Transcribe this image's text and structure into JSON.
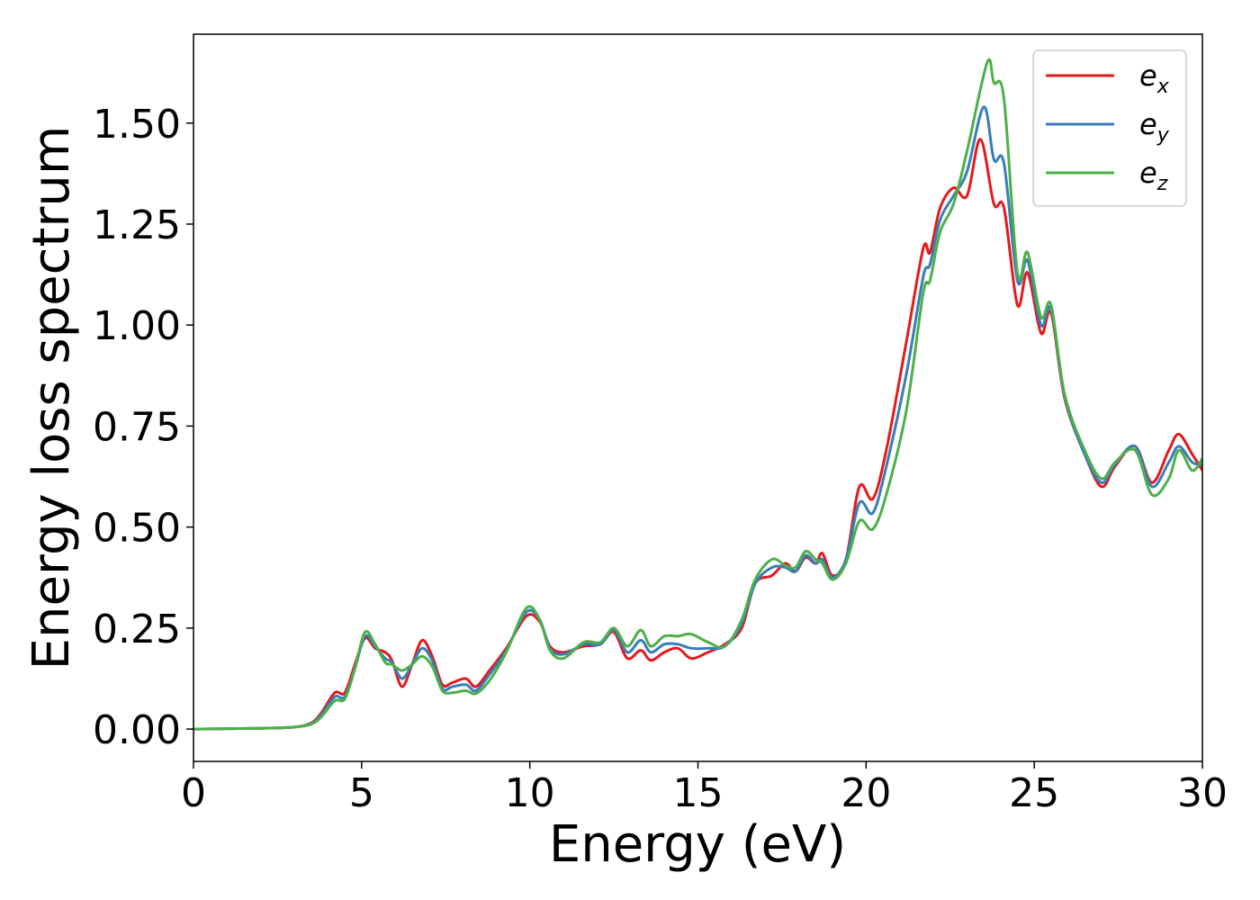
{
  "chart_data": {
    "type": "line",
    "title": "",
    "xlabel": "Energy (eV)",
    "ylabel": "Energy loss spectrum",
    "xlim": [
      0,
      30
    ],
    "ylim": [
      -0.08,
      1.72
    ],
    "xticks": [
      0,
      5,
      10,
      15,
      20,
      25,
      30
    ],
    "xtick_labels": [
      "0",
      "5",
      "10",
      "15",
      "20",
      "25",
      "30"
    ],
    "yticks": [
      0.0,
      0.25,
      0.5,
      0.75,
      1.0,
      1.25,
      1.5
    ],
    "ytick_labels": [
      "0.00",
      "0.25",
      "0.50",
      "0.75",
      "1.00",
      "1.25",
      "1.50"
    ],
    "grid": false,
    "legend": {
      "placement": "top-right",
      "entries": [
        {
          "base": "e",
          "sub": "x",
          "color": "#e41a1c"
        },
        {
          "base": "e",
          "sub": "y",
          "color": "#377eb8"
        },
        {
          "base": "e",
          "sub": "z",
          "color": "#4daf4a"
        }
      ]
    },
    "series": [
      {
        "name": "e_x",
        "color": "#e41a1c",
        "points": [
          [
            0,
            0.0
          ],
          [
            2.0,
            0.002
          ],
          [
            3.0,
            0.005
          ],
          [
            3.5,
            0.015
          ],
          [
            3.8,
            0.04
          ],
          [
            4.2,
            0.09
          ],
          [
            4.5,
            0.09
          ],
          [
            4.8,
            0.16
          ],
          [
            5.1,
            0.225
          ],
          [
            5.4,
            0.2
          ],
          [
            5.7,
            0.19
          ],
          [
            5.9,
            0.17
          ],
          [
            6.2,
            0.105
          ],
          [
            6.5,
            0.16
          ],
          [
            6.8,
            0.22
          ],
          [
            7.1,
            0.18
          ],
          [
            7.4,
            0.11
          ],
          [
            7.7,
            0.115
          ],
          [
            8.1,
            0.125
          ],
          [
            8.4,
            0.105
          ],
          [
            8.8,
            0.145
          ],
          [
            9.3,
            0.2
          ],
          [
            9.9,
            0.28
          ],
          [
            10.3,
            0.265
          ],
          [
            10.6,
            0.205
          ],
          [
            11.0,
            0.19
          ],
          [
            11.6,
            0.205
          ],
          [
            12.1,
            0.21
          ],
          [
            12.5,
            0.24
          ],
          [
            12.9,
            0.175
          ],
          [
            13.3,
            0.195
          ],
          [
            13.6,
            0.17
          ],
          [
            14.0,
            0.19
          ],
          [
            14.4,
            0.2
          ],
          [
            14.8,
            0.175
          ],
          [
            15.3,
            0.19
          ],
          [
            15.8,
            0.21
          ],
          [
            16.3,
            0.25
          ],
          [
            16.7,
            0.36
          ],
          [
            17.2,
            0.38
          ],
          [
            17.6,
            0.41
          ],
          [
            17.9,
            0.39
          ],
          [
            18.2,
            0.425
          ],
          [
            18.5,
            0.41
          ],
          [
            18.7,
            0.435
          ],
          [
            19.0,
            0.38
          ],
          [
            19.4,
            0.42
          ],
          [
            19.8,
            0.6
          ],
          [
            20.2,
            0.57
          ],
          [
            20.6,
            0.69
          ],
          [
            21.2,
            0.96
          ],
          [
            21.7,
            1.19
          ],
          [
            21.9,
            1.18
          ],
          [
            22.2,
            1.29
          ],
          [
            22.6,
            1.34
          ],
          [
            23.0,
            1.32
          ],
          [
            23.4,
            1.46
          ],
          [
            23.8,
            1.3
          ],
          [
            24.1,
            1.29
          ],
          [
            24.5,
            1.05
          ],
          [
            24.8,
            1.13
          ],
          [
            25.2,
            0.98
          ],
          [
            25.5,
            1.03
          ],
          [
            25.9,
            0.82
          ],
          [
            26.5,
            0.68
          ],
          [
            27.0,
            0.6
          ],
          [
            27.4,
            0.65
          ],
          [
            28.0,
            0.7
          ],
          [
            28.5,
            0.61
          ],
          [
            29.0,
            0.69
          ],
          [
            29.3,
            0.73
          ],
          [
            29.7,
            0.68
          ],
          [
            30.0,
            0.64
          ]
        ]
      },
      {
        "name": "e_y",
        "color": "#377eb8",
        "points": [
          [
            0,
            0.0
          ],
          [
            2.0,
            0.002
          ],
          [
            3.0,
            0.005
          ],
          [
            3.5,
            0.013
          ],
          [
            3.8,
            0.035
          ],
          [
            4.2,
            0.08
          ],
          [
            4.5,
            0.08
          ],
          [
            4.8,
            0.15
          ],
          [
            5.1,
            0.23
          ],
          [
            5.4,
            0.205
          ],
          [
            5.7,
            0.175
          ],
          [
            5.9,
            0.165
          ],
          [
            6.2,
            0.125
          ],
          [
            6.5,
            0.16
          ],
          [
            6.8,
            0.2
          ],
          [
            7.1,
            0.17
          ],
          [
            7.4,
            0.1
          ],
          [
            7.7,
            0.105
          ],
          [
            8.1,
            0.11
          ],
          [
            8.4,
            0.095
          ],
          [
            8.8,
            0.135
          ],
          [
            9.3,
            0.195
          ],
          [
            9.9,
            0.29
          ],
          [
            10.3,
            0.27
          ],
          [
            10.6,
            0.2
          ],
          [
            11.0,
            0.185
          ],
          [
            11.6,
            0.21
          ],
          [
            12.1,
            0.21
          ],
          [
            12.5,
            0.245
          ],
          [
            12.9,
            0.19
          ],
          [
            13.3,
            0.22
          ],
          [
            13.6,
            0.19
          ],
          [
            14.0,
            0.21
          ],
          [
            14.4,
            0.21
          ],
          [
            14.8,
            0.2
          ],
          [
            15.3,
            0.2
          ],
          [
            15.8,
            0.205
          ],
          [
            16.3,
            0.26
          ],
          [
            16.7,
            0.36
          ],
          [
            17.2,
            0.4
          ],
          [
            17.6,
            0.4
          ],
          [
            17.9,
            0.39
          ],
          [
            18.2,
            0.43
          ],
          [
            18.5,
            0.41
          ],
          [
            18.7,
            0.42
          ],
          [
            19.0,
            0.375
          ],
          [
            19.4,
            0.42
          ],
          [
            19.8,
            0.56
          ],
          [
            20.2,
            0.535
          ],
          [
            20.6,
            0.65
          ],
          [
            21.2,
            0.88
          ],
          [
            21.7,
            1.12
          ],
          [
            21.9,
            1.15
          ],
          [
            22.2,
            1.26
          ],
          [
            22.6,
            1.32
          ],
          [
            23.0,
            1.38
          ],
          [
            23.5,
            1.54
          ],
          [
            23.8,
            1.41
          ],
          [
            24.1,
            1.4
          ],
          [
            24.5,
            1.11
          ],
          [
            24.8,
            1.16
          ],
          [
            25.2,
            1.0
          ],
          [
            25.5,
            1.04
          ],
          [
            25.9,
            0.825
          ],
          [
            26.5,
            0.68
          ],
          [
            27.0,
            0.61
          ],
          [
            27.4,
            0.655
          ],
          [
            28.0,
            0.7
          ],
          [
            28.5,
            0.6
          ],
          [
            29.0,
            0.66
          ],
          [
            29.3,
            0.7
          ],
          [
            29.7,
            0.66
          ],
          [
            30.0,
            0.655
          ]
        ]
      },
      {
        "name": "e_z",
        "color": "#4daf4a",
        "points": [
          [
            0,
            0.0
          ],
          [
            2.0,
            0.002
          ],
          [
            3.0,
            0.005
          ],
          [
            3.5,
            0.012
          ],
          [
            3.8,
            0.03
          ],
          [
            4.2,
            0.07
          ],
          [
            4.5,
            0.075
          ],
          [
            4.8,
            0.15
          ],
          [
            5.1,
            0.24
          ],
          [
            5.4,
            0.21
          ],
          [
            5.7,
            0.165
          ],
          [
            5.9,
            0.16
          ],
          [
            6.2,
            0.145
          ],
          [
            6.5,
            0.16
          ],
          [
            6.8,
            0.18
          ],
          [
            7.1,
            0.155
          ],
          [
            7.4,
            0.095
          ],
          [
            7.7,
            0.09
          ],
          [
            8.1,
            0.095
          ],
          [
            8.4,
            0.088
          ],
          [
            8.8,
            0.12
          ],
          [
            9.3,
            0.19
          ],
          [
            9.9,
            0.3
          ],
          [
            10.3,
            0.27
          ],
          [
            10.6,
            0.195
          ],
          [
            11.0,
            0.175
          ],
          [
            11.6,
            0.215
          ],
          [
            12.1,
            0.215
          ],
          [
            12.5,
            0.25
          ],
          [
            12.9,
            0.205
          ],
          [
            13.3,
            0.245
          ],
          [
            13.6,
            0.205
          ],
          [
            14.0,
            0.23
          ],
          [
            14.4,
            0.23
          ],
          [
            14.8,
            0.235
          ],
          [
            15.3,
            0.215
          ],
          [
            15.8,
            0.205
          ],
          [
            16.3,
            0.27
          ],
          [
            16.7,
            0.37
          ],
          [
            17.2,
            0.42
          ],
          [
            17.6,
            0.405
          ],
          [
            17.9,
            0.4
          ],
          [
            18.2,
            0.44
          ],
          [
            18.5,
            0.42
          ],
          [
            18.7,
            0.41
          ],
          [
            19.0,
            0.37
          ],
          [
            19.4,
            0.41
          ],
          [
            19.8,
            0.515
          ],
          [
            20.2,
            0.495
          ],
          [
            20.6,
            0.58
          ],
          [
            21.2,
            0.79
          ],
          [
            21.7,
            1.08
          ],
          [
            21.9,
            1.11
          ],
          [
            22.2,
            1.23
          ],
          [
            22.6,
            1.3
          ],
          [
            23.0,
            1.43
          ],
          [
            23.6,
            1.65
          ],
          [
            23.8,
            1.6
          ],
          [
            24.1,
            1.56
          ],
          [
            24.5,
            1.13
          ],
          [
            24.8,
            1.18
          ],
          [
            25.2,
            1.02
          ],
          [
            25.5,
            1.05
          ],
          [
            25.9,
            0.83
          ],
          [
            26.5,
            0.69
          ],
          [
            27.0,
            0.62
          ],
          [
            27.4,
            0.66
          ],
          [
            28.0,
            0.69
          ],
          [
            28.5,
            0.58
          ],
          [
            29.0,
            0.62
          ],
          [
            29.3,
            0.69
          ],
          [
            29.7,
            0.64
          ],
          [
            30.0,
            0.67
          ]
        ]
      }
    ]
  }
}
